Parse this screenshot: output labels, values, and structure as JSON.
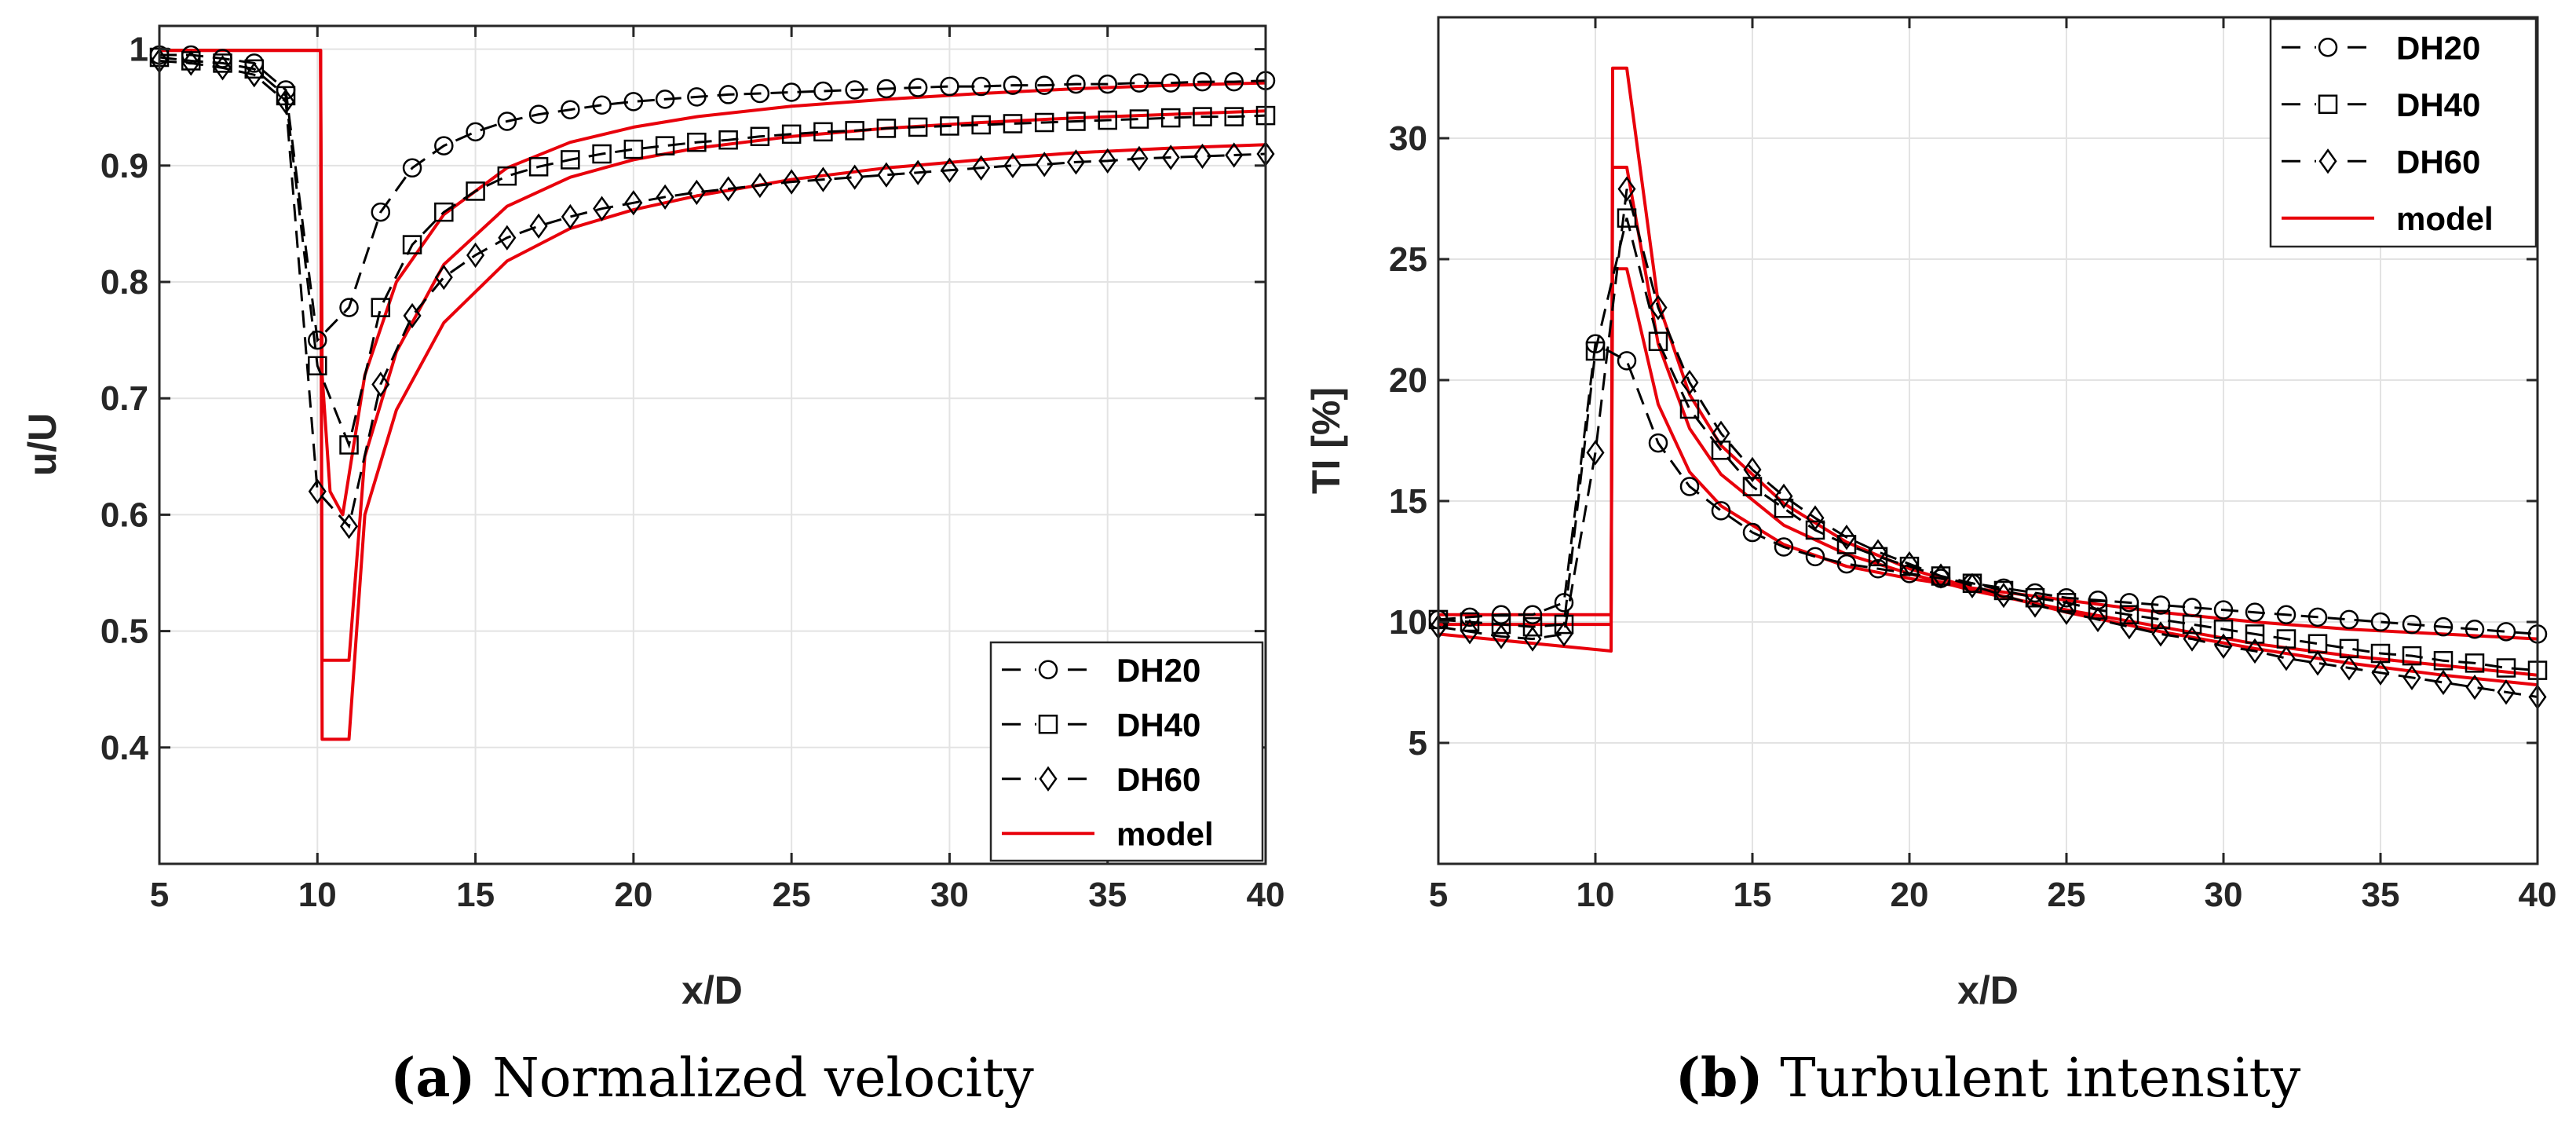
{
  "chart_data": [
    {
      "type": "line",
      "caption_letter": "(a)",
      "caption_text": " Normalized velocity",
      "xlabel": "x/D",
      "ylabel": "u/U",
      "xlim": [
        5,
        40
      ],
      "ylim": [
        0.3,
        1.02
      ],
      "xticks": [
        5,
        10,
        15,
        20,
        25,
        30,
        35,
        40
      ],
      "yticks": [
        0.4,
        0.5,
        0.6,
        0.7,
        0.8,
        0.9,
        1
      ],
      "ytick_labels": [
        "0.4",
        "0.5",
        "0.6",
        "0.7",
        "0.8",
        "0.9",
        "1"
      ],
      "grid": true,
      "legend_position": "bottom-right",
      "legend": [
        "DH20",
        "DH40",
        "DH60",
        "model"
      ],
      "series": [
        {
          "name": "DH20",
          "marker": "circle",
          "style": "dashed-black",
          "x": [
            5,
            6,
            7,
            8,
            9,
            10,
            11,
            12,
            13,
            14,
            15,
            16,
            17,
            18,
            19,
            20,
            21,
            22,
            23,
            24,
            25,
            26,
            27,
            28,
            29,
            30,
            31,
            32,
            33,
            34,
            35,
            36,
            37,
            38,
            39,
            40
          ],
          "values": [
            0.995,
            0.995,
            0.992,
            0.988,
            0.965,
            0.75,
            0.778,
            0.86,
            0.898,
            0.917,
            0.929,
            0.938,
            0.944,
            0.948,
            0.952,
            0.955,
            0.957,
            0.959,
            0.961,
            0.962,
            0.963,
            0.964,
            0.965,
            0.966,
            0.967,
            0.968,
            0.968,
            0.969,
            0.969,
            0.97,
            0.97,
            0.971,
            0.971,
            0.972,
            0.972,
            0.973
          ]
        },
        {
          "name": "DH40",
          "marker": "square",
          "style": "dashed-black",
          "x": [
            5,
            6,
            7,
            8,
            9,
            10,
            11,
            12,
            13,
            14,
            15,
            16,
            17,
            18,
            19,
            20,
            21,
            22,
            23,
            24,
            25,
            26,
            27,
            28,
            29,
            30,
            31,
            32,
            33,
            34,
            35,
            36,
            37,
            38,
            39,
            40
          ],
          "values": [
            0.993,
            0.99,
            0.988,
            0.983,
            0.96,
            0.728,
            0.66,
            0.778,
            0.832,
            0.86,
            0.878,
            0.891,
            0.899,
            0.905,
            0.91,
            0.914,
            0.917,
            0.92,
            0.922,
            0.925,
            0.927,
            0.929,
            0.93,
            0.932,
            0.933,
            0.934,
            0.935,
            0.936,
            0.937,
            0.938,
            0.939,
            0.94,
            0.941,
            0.942,
            0.942,
            0.943
          ]
        },
        {
          "name": "DH60",
          "marker": "diamond",
          "style": "dashed-black",
          "x": [
            5,
            6,
            7,
            8,
            9,
            10,
            11,
            12,
            13,
            14,
            15,
            16,
            17,
            18,
            19,
            20,
            21,
            22,
            23,
            24,
            25,
            26,
            27,
            28,
            29,
            30,
            31,
            32,
            33,
            34,
            35,
            36,
            37,
            38,
            39,
            40
          ],
          "values": [
            0.99,
            0.988,
            0.984,
            0.978,
            0.955,
            0.62,
            0.59,
            0.712,
            0.771,
            0.804,
            0.823,
            0.838,
            0.848,
            0.856,
            0.863,
            0.868,
            0.873,
            0.877,
            0.88,
            0.883,
            0.886,
            0.888,
            0.89,
            0.892,
            0.894,
            0.896,
            0.898,
            0.9,
            0.901,
            0.903,
            0.904,
            0.906,
            0.907,
            0.908,
            0.909,
            0.91
          ]
        },
        {
          "name": "model",
          "style": "solid-red",
          "note": "three model curves, one per case",
          "curves": [
            {
              "x": [
                5,
                10.1,
                10.15,
                10.4,
                10.8,
                11.5,
                12.5,
                14,
                16,
                18,
                20,
                22,
                25,
                28,
                31,
                34,
                37,
                40
              ],
              "values": [
                0.999,
                0.999,
                0.72,
                0.62,
                0.6,
                0.72,
                0.8,
                0.858,
                0.898,
                0.92,
                0.933,
                0.942,
                0.951,
                0.957,
                0.962,
                0.966,
                0.969,
                0.971
              ]
            },
            {
              "x": [
                5,
                10.1,
                10.15,
                11,
                11.5,
                12.5,
                14,
                16,
                18,
                20,
                22,
                25,
                28,
                31,
                34,
                37,
                40
              ],
              "values": [
                0.999,
                0.999,
                0.475,
                0.475,
                0.65,
                0.74,
                0.815,
                0.865,
                0.89,
                0.905,
                0.915,
                0.925,
                0.932,
                0.937,
                0.941,
                0.944,
                0.947
              ]
            },
            {
              "x": [
                5,
                10.1,
                10.15,
                11,
                11.5,
                12.5,
                14,
                16,
                18,
                20,
                22,
                25,
                28,
                31,
                34,
                37,
                40
              ],
              "values": [
                0.999,
                0.999,
                0.407,
                0.407,
                0.6,
                0.69,
                0.765,
                0.818,
                0.846,
                0.862,
                0.874,
                0.888,
                0.898,
                0.905,
                0.911,
                0.915,
                0.918
              ]
            }
          ]
        }
      ]
    },
    {
      "type": "line",
      "caption_letter": "(b)",
      "caption_text": " Turbulent intensity",
      "xlabel": "x/D",
      "ylabel": "TI [%]",
      "xlim": [
        5,
        40
      ],
      "ylim": [
        0,
        35
      ],
      "xticks": [
        5,
        10,
        15,
        20,
        25,
        30,
        35,
        40
      ],
      "yticks": [
        5,
        10,
        15,
        20,
        25,
        30
      ],
      "ytick_labels": [
        "5",
        "10",
        "15",
        "20",
        "25",
        "30"
      ],
      "grid": true,
      "legend_position": "top-right",
      "legend": [
        "DH20",
        "DH40",
        "DH60",
        "model"
      ],
      "series": [
        {
          "name": "DH20",
          "marker": "circle",
          "style": "dashed-black",
          "x": [
            5,
            6,
            7,
            8,
            9,
            10,
            11,
            12,
            13,
            14,
            15,
            16,
            17,
            18,
            19,
            20,
            21,
            22,
            23,
            24,
            25,
            26,
            27,
            28,
            29,
            30,
            31,
            32,
            33,
            34,
            35,
            36,
            37,
            38,
            39,
            40
          ],
          "values": [
            10.1,
            10.2,
            10.3,
            10.3,
            10.8,
            21.5,
            20.8,
            17.4,
            15.6,
            14.6,
            13.7,
            13.1,
            12.7,
            12.4,
            12.2,
            12.0,
            11.8,
            11.6,
            11.4,
            11.2,
            11.0,
            10.9,
            10.8,
            10.7,
            10.6,
            10.5,
            10.4,
            10.3,
            10.2,
            10.1,
            10.0,
            9.9,
            9.8,
            9.7,
            9.6,
            9.5
          ]
        },
        {
          "name": "DH40",
          "marker": "square",
          "style": "dashed-black",
          "x": [
            5,
            6,
            7,
            8,
            9,
            10,
            11,
            12,
            13,
            14,
            15,
            16,
            17,
            18,
            19,
            20,
            21,
            22,
            23,
            24,
            25,
            26,
            27,
            28,
            29,
            30,
            31,
            32,
            33,
            34,
            35,
            36,
            37,
            38,
            39,
            40
          ],
          "values": [
            10.1,
            10.0,
            9.9,
            9.8,
            9.9,
            21.2,
            26.7,
            21.6,
            18.8,
            17.1,
            15.6,
            14.7,
            13.8,
            13.2,
            12.7,
            12.3,
            11.9,
            11.6,
            11.3,
            11.0,
            10.8,
            10.5,
            10.3,
            10.1,
            9.9,
            9.7,
            9.5,
            9.3,
            9.1,
            8.9,
            8.7,
            8.6,
            8.4,
            8.3,
            8.1,
            8.0
          ]
        },
        {
          "name": "DH60",
          "marker": "diamond",
          "style": "dashed-black",
          "x": [
            5,
            6,
            7,
            8,
            9,
            10,
            11,
            12,
            13,
            14,
            15,
            16,
            17,
            18,
            19,
            20,
            21,
            22,
            23,
            24,
            25,
            26,
            27,
            28,
            29,
            30,
            31,
            32,
            33,
            34,
            35,
            36,
            37,
            38,
            39,
            40
          ],
          "values": [
            9.8,
            9.6,
            9.4,
            9.3,
            9.5,
            17.0,
            27.9,
            23.0,
            19.9,
            17.8,
            16.3,
            15.2,
            14.3,
            13.5,
            12.9,
            12.4,
            11.9,
            11.5,
            11.1,
            10.7,
            10.4,
            10.1,
            9.8,
            9.5,
            9.3,
            9.0,
            8.8,
            8.5,
            8.3,
            8.1,
            7.9,
            7.7,
            7.5,
            7.3,
            7.1,
            6.9
          ]
        },
        {
          "name": "model",
          "style": "solid-red",
          "note": "three model curves, one per case",
          "curves": [
            {
              "x": [
                5,
                10.5,
                10.55,
                11,
                12,
                13,
                14,
                16,
                18,
                20,
                22,
                25,
                28,
                31,
                34,
                37,
                40
              ],
              "values": [
                10.3,
                10.3,
                24.6,
                24.6,
                19.0,
                16.2,
                14.8,
                13.2,
                12.3,
                11.8,
                11.4,
                10.9,
                10.4,
                10.0,
                9.7,
                9.5,
                9.3
              ]
            },
            {
              "x": [
                5,
                10.5,
                10.55,
                11,
                12,
                13,
                14,
                16,
                18,
                20,
                22,
                25,
                28,
                31,
                34,
                37,
                40
              ],
              "values": [
                9.9,
                9.9,
                28.8,
                28.8,
                21.5,
                18.0,
                16.1,
                14.0,
                12.8,
                12.0,
                11.3,
                10.5,
                9.8,
                9.1,
                8.6,
                8.2,
                7.8
              ]
            },
            {
              "x": [
                5,
                10.5,
                10.55,
                11,
                12,
                13,
                14,
                16,
                18,
                20,
                22,
                25,
                28,
                31,
                34,
                37,
                40
              ],
              "values": [
                9.5,
                8.8,
                32.9,
                32.9,
                23.2,
                19.4,
                17.3,
                14.9,
                13.3,
                12.2,
                11.4,
                10.4,
                9.6,
                8.9,
                8.3,
                7.8,
                7.4
              ]
            }
          ]
        }
      ]
    }
  ],
  "colors": {
    "data_markers": "#000000",
    "model": "#e8000b",
    "grid": "#e3e3e3",
    "axes": "#262626"
  }
}
